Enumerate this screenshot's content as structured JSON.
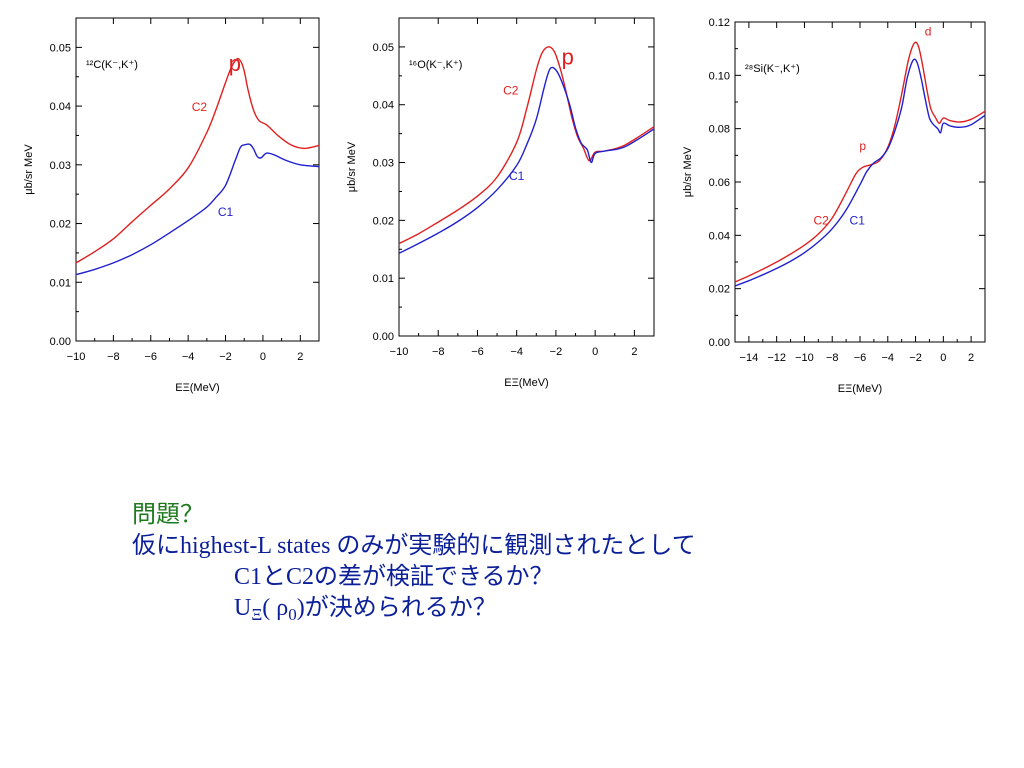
{
  "colors": {
    "C2": "#e02020",
    "C1": "#2020d0",
    "question_title": "#1c7a1c",
    "question_text": "#0b1f99"
  },
  "chart_data": [
    {
      "type": "line",
      "reaction": "¹²C(K⁻,K⁺)",
      "xlabel": "EΞ(MeV)",
      "ylabel": "μb/sr MeV",
      "xlim": [
        -10,
        3
      ],
      "ylim": [
        0,
        0.055
      ],
      "xticks": [
        -10,
        -8,
        -6,
        -4,
        -2,
        0,
        2
      ],
      "xtick_labels": [
        "−10",
        "−8",
        "−6",
        "−4",
        "−2",
        "0",
        "2"
      ],
      "yticks": [
        0,
        0.01,
        0.02,
        0.03,
        0.04,
        0.05
      ],
      "ytick_labels": [
        "0.00",
        "0.01",
        "0.02",
        "0.03",
        "0.04",
        "0.05"
      ],
      "series": [
        {
          "name": "C2",
          "color": "#e02020",
          "x": [
            -10,
            -9,
            -8,
            -7,
            -6,
            -5,
            -4,
            -3,
            -2.5,
            -2,
            -1.7,
            -1.4,
            -1.2,
            -1.0,
            -0.8,
            -0.5,
            -0.2,
            0.2,
            0.8,
            1.5,
            2.2,
            3
          ],
          "y": [
            0.0133,
            0.0152,
            0.0174,
            0.0203,
            0.0231,
            0.0259,
            0.0295,
            0.0355,
            0.0395,
            0.044,
            0.0465,
            0.048,
            0.0477,
            0.046,
            0.0428,
            0.0393,
            0.0375,
            0.0368,
            0.035,
            0.0334,
            0.0328,
            0.0333
          ]
        },
        {
          "name": "C1",
          "color": "#2020d0",
          "x": [
            -10,
            -9,
            -8,
            -7,
            -6,
            -5,
            -4,
            -3,
            -2.5,
            -2,
            -1.5,
            -1.2,
            -1.0,
            -0.7,
            -0.5,
            -0.3,
            -0.1,
            0.2,
            0.6,
            1.2,
            2,
            3
          ],
          "y": [
            0.0113,
            0.0122,
            0.0133,
            0.0147,
            0.0164,
            0.0184,
            0.0205,
            0.0228,
            0.0245,
            0.0265,
            0.0306,
            0.033,
            0.0334,
            0.0335,
            0.0327,
            0.0314,
            0.0312,
            0.032,
            0.0317,
            0.0308,
            0.03,
            0.0297
          ]
        }
      ],
      "annotations": [
        {
          "text": "p",
          "x": -1.5,
          "y": 0.046,
          "color": "#e02020",
          "size": "large"
        },
        {
          "text": "C2",
          "x": -3.4,
          "y": 0.0392,
          "color": "#e02020",
          "size": "small"
        },
        {
          "text": "C1",
          "x": -2.0,
          "y": 0.0213,
          "color": "#2020d0",
          "size": "small"
        }
      ]
    },
    {
      "type": "line",
      "reaction": "¹⁶O(K⁻,K⁺)",
      "xlabel": "EΞ(MeV)",
      "ylabel": "μb/sr MeV",
      "xlim": [
        -10,
        3
      ],
      "ylim": [
        0,
        0.055
      ],
      "xticks": [
        -10,
        -8,
        -6,
        -4,
        -2,
        0,
        2
      ],
      "xtick_labels": [
        "−10",
        "−8",
        "−6",
        "−4",
        "−2",
        "0",
        "2"
      ],
      "yticks": [
        0,
        0.01,
        0.02,
        0.03,
        0.04,
        0.05
      ],
      "ytick_labels": [
        "0.00",
        "0.01",
        "0.02",
        "0.03",
        "0.04",
        "0.05"
      ],
      "series": [
        {
          "name": "C2",
          "color": "#e02020",
          "x": [
            -10,
            -9,
            -8,
            -7,
            -6,
            -5,
            -4,
            -3.5,
            -3,
            -2.7,
            -2.4,
            -2.1,
            -1.8,
            -1.5,
            -1.2,
            -0.9,
            -0.6,
            -0.3,
            0,
            0.5,
            1.5,
            3
          ],
          "y": [
            0.016,
            0.0177,
            0.0197,
            0.0218,
            0.0242,
            0.0275,
            0.0335,
            0.0392,
            0.046,
            0.049,
            0.05,
            0.0493,
            0.0465,
            0.0425,
            0.038,
            0.0345,
            0.0325,
            0.0303,
            0.0318,
            0.032,
            0.033,
            0.0362
          ]
        },
        {
          "name": "C1",
          "color": "#2020d0",
          "x": [
            -10,
            -9,
            -8,
            -7,
            -6,
            -5,
            -4,
            -3.5,
            -3,
            -2.6,
            -2.3,
            -2.0,
            -1.7,
            -1.3,
            -1.0,
            -0.7,
            -0.4,
            -0.2,
            0,
            0.5,
            1.5,
            3
          ],
          "y": [
            0.0143,
            0.016,
            0.0178,
            0.0198,
            0.0222,
            0.0253,
            0.0295,
            0.033,
            0.0375,
            0.043,
            0.0462,
            0.046,
            0.044,
            0.04,
            0.036,
            0.0333,
            0.0322,
            0.03,
            0.0316,
            0.032,
            0.0327,
            0.0358
          ]
        }
      ],
      "annotations": [
        {
          "text": "p",
          "x": -1.4,
          "y": 0.047,
          "color": "#e02020",
          "size": "large"
        },
        {
          "text": "C2",
          "x": -4.3,
          "y": 0.0418,
          "color": "#e02020",
          "size": "small"
        },
        {
          "text": "C1",
          "x": -4.0,
          "y": 0.027,
          "color": "#2020d0",
          "size": "small"
        }
      ]
    },
    {
      "type": "line",
      "reaction": "²⁸Si(K⁻,K⁺)",
      "xlabel": "EΞ(MeV)",
      "ylabel": "μb/sr MeV",
      "xlim": [
        -15,
        3
      ],
      "ylim": [
        0,
        0.12
      ],
      "xticks": [
        -14,
        -12,
        -10,
        -8,
        -6,
        -4,
        -2,
        0,
        2
      ],
      "xtick_labels": [
        "−14",
        "−12",
        "−10",
        "−8",
        "−6",
        "−4",
        "−2",
        "0",
        "2"
      ],
      "yticks": [
        0,
        0.02,
        0.04,
        0.06,
        0.08,
        0.1,
        0.12
      ],
      "ytick_labels": [
        "0.00",
        "0.02",
        "0.04",
        "0.06",
        "0.08",
        "0.10",
        "0.12"
      ],
      "series": [
        {
          "name": "C2",
          "color": "#e02020",
          "x": [
            -15,
            -14,
            -13,
            -12,
            -11,
            -10,
            -9,
            -8,
            -7,
            -6.3,
            -5.8,
            -5.2,
            -4.6,
            -4.0,
            -3.5,
            -3.0,
            -2.5,
            -2.1,
            -1.8,
            -1.5,
            -1.2,
            -0.9,
            -0.6,
            -0.3,
            0,
            0.5,
            1.2,
            2,
            3
          ],
          "y": [
            0.0225,
            0.0248,
            0.0273,
            0.03,
            0.033,
            0.0363,
            0.0405,
            0.0465,
            0.056,
            0.063,
            0.0655,
            0.0665,
            0.068,
            0.073,
            0.081,
            0.093,
            0.106,
            0.112,
            0.111,
            0.104,
            0.095,
            0.0875,
            0.0845,
            0.082,
            0.084,
            0.083,
            0.0825,
            0.0835,
            0.0865
          ]
        },
        {
          "name": "C1",
          "color": "#2020d0",
          "x": [
            -15,
            -14,
            -13,
            -12,
            -11,
            -10,
            -9,
            -8,
            -7,
            -6,
            -5.5,
            -5,
            -4.5,
            -4.0,
            -3.5,
            -3.0,
            -2.6,
            -2.2,
            -1.9,
            -1.6,
            -1.3,
            -1.0,
            -0.7,
            -0.4,
            -0.2,
            0,
            0.5,
            1.2,
            2,
            3
          ],
          "y": [
            0.021,
            0.023,
            0.0252,
            0.0276,
            0.0303,
            0.0335,
            0.0375,
            0.0425,
            0.0495,
            0.059,
            0.064,
            0.0672,
            0.069,
            0.0725,
            0.079,
            0.088,
            0.099,
            0.1055,
            0.105,
            0.099,
            0.091,
            0.084,
            0.0815,
            0.08,
            0.0785,
            0.082,
            0.081,
            0.0805,
            0.0815,
            0.085
          ]
        }
      ],
      "annotations": [
        {
          "text": "d",
          "x": -1.1,
          "y": 0.115,
          "color": "#e02020",
          "size": "small"
        },
        {
          "text": "p",
          "x": -5.8,
          "y": 0.072,
          "color": "#e02020",
          "size": "small"
        },
        {
          "text": "C2",
          "x": -8.8,
          "y": 0.044,
          "color": "#e02020",
          "size": "small"
        },
        {
          "text": "C1",
          "x": -6.2,
          "y": 0.044,
          "color": "#2020d0",
          "size": "small"
        }
      ]
    }
  ],
  "question": {
    "title": "問題？",
    "line1": "仮にhighest-L states のみが実験的に観測されたとして",
    "line2": "C1とC2の差が検証できるか？",
    "line3_pre": "U",
    "line3_sub1": "Ξ",
    "line3_mid": "( ρ",
    "line3_sub2": "0",
    "line3_post": ")が決められるか？"
  }
}
